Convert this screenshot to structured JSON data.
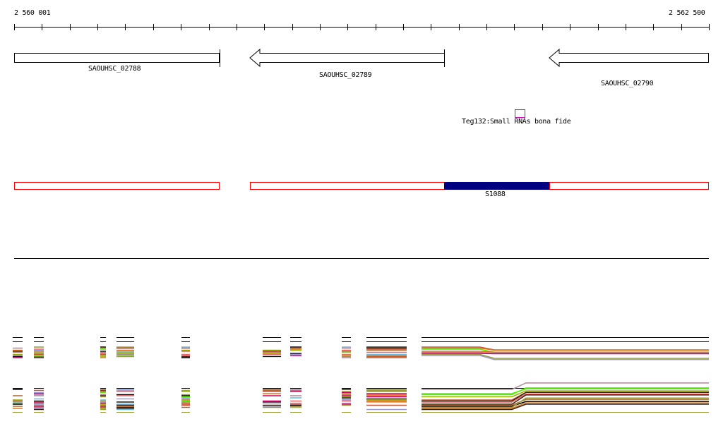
{
  "ruler": {
    "start_label": "2 560 001",
    "end_label": "2 562 500",
    "start": 2560001,
    "end": 2562500,
    "tick_count": 25
  },
  "genes": [
    {
      "name": "SAOUHSC_02788",
      "strand": "+"
    },
    {
      "name": "SAOUHSC_02789",
      "strand": "-"
    },
    {
      "name": "SAOUHSC_02790",
      "strand": "-"
    }
  ],
  "srna": {
    "label": "Teg132:Small RNAs bona fide",
    "color": "#cc00cc"
  },
  "regions": {
    "label": "S1088",
    "outline_color": "#ff0000",
    "highlight_color": "#000080"
  },
  "track_palette": [
    "#000000",
    "#66bbee",
    "#cc5533",
    "#99aa00",
    "#aa8899",
    "#55ee00",
    "#cc0066",
    "#dd7722",
    "#ffffff",
    "#9999dd",
    "#332211",
    "#999933",
    "#ee6666",
    "#aa6633"
  ]
}
